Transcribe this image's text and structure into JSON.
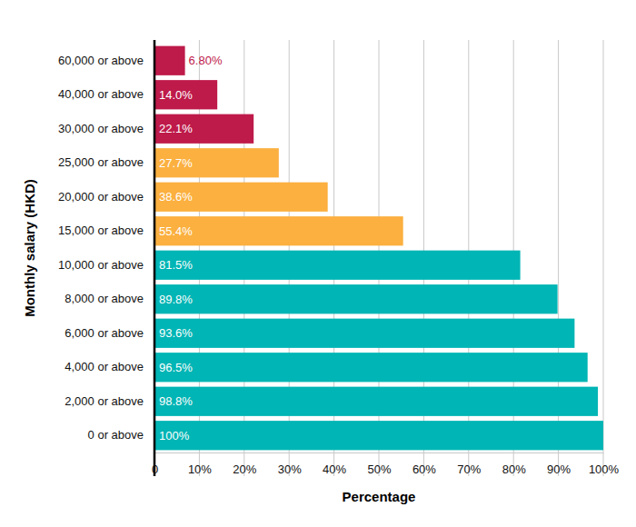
{
  "chart_data": {
    "type": "bar",
    "orientation": "horizontal",
    "x_label": "Percentage",
    "y_label": "Monthly salary (HKD)",
    "categories": [
      "60,000 or above",
      "40,000 or above",
      "30,000 or above",
      "25,000 or above",
      "20,000 or above",
      "15,000 or above",
      "10,000 or above",
      "8,000 or above",
      "6,000 or above",
      "4,000 or above",
      "2,000 or above",
      "0 or above"
    ],
    "values": [
      6.8,
      14.0,
      22.1,
      27.7,
      38.6,
      55.4,
      81.5,
      89.8,
      93.6,
      96.5,
      98.8,
      100
    ],
    "value_labels": [
      "6.80%",
      "14.0%",
      "22.1%",
      "27.7%",
      "38.6%",
      "55.4%",
      "81.5%",
      "89.8%",
      "93.6%",
      "96.5%",
      "98.8%",
      "100%"
    ],
    "colors": [
      "#be1a4a",
      "#be1a4a",
      "#be1a4a",
      "#fbb040",
      "#fbb040",
      "#fbb040",
      "#00b5b5",
      "#00b5b5",
      "#00b5b5",
      "#00b5b5",
      "#00b5b5",
      "#00b5b5"
    ],
    "xlim": [
      0,
      100
    ],
    "xticks": [
      0,
      {
        "value": 10,
        "label": "10%"
      },
      {
        "value": 20,
        "label": "20%"
      },
      {
        "value": 30,
        "label": "30%"
      },
      {
        "value": 40,
        "label": "40%"
      },
      {
        "value": 50,
        "label": "50%"
      },
      {
        "value": 60,
        "label": "60%"
      },
      {
        "value": 70,
        "label": "70%"
      },
      {
        "value": 80,
        "label": "80%"
      },
      {
        "value": 90,
        "label": "90%"
      },
      {
        "value": 100,
        "label": "100%"
      }
    ],
    "grid": true,
    "data_labels": true
  }
}
